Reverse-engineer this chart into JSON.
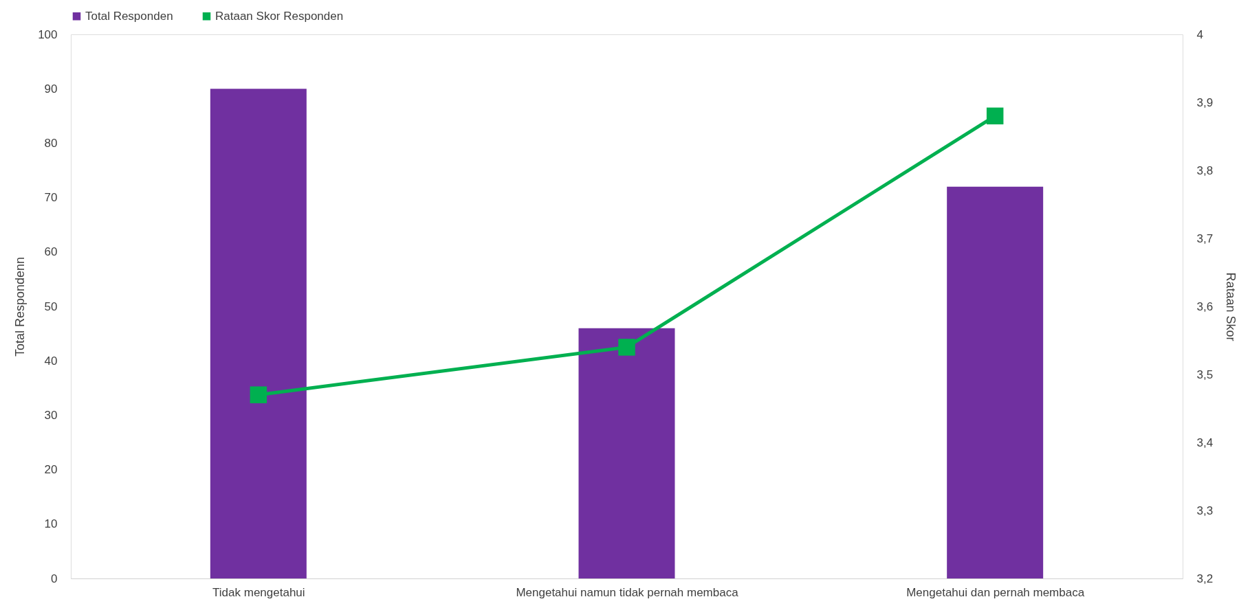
{
  "chart_data": {
    "type": "bar",
    "categories": [
      "Tidak mengetahui",
      "Mengetahui namun tidak pernah membaca",
      "Mengetahui dan pernah membaca"
    ],
    "series": [
      {
        "name": "Total Responden",
        "color": "#7030a0",
        "values": [
          90,
          46,
          72
        ]
      },
      {
        "name": "Rataan Skor Responden",
        "type": "line",
        "axis": "y2",
        "color": "#00b050",
        "marker": "square",
        "values": [
          3.47,
          3.54,
          3.88
        ]
      }
    ],
    "ylabel": "Total Respondenn",
    "y2label": "Rataan Skor",
    "ylim": [
      0,
      100
    ],
    "yticks": [
      0,
      10,
      20,
      30,
      40,
      50,
      60,
      70,
      80,
      90,
      100
    ],
    "y2lim": [
      3.2,
      4
    ],
    "y2ticks": [
      {
        "value": 3.2,
        "label": "3,2"
      },
      {
        "value": 3.3,
        "label": "3,3"
      },
      {
        "value": 3.4,
        "label": "3,4"
      },
      {
        "value": 3.5,
        "label": "3,5"
      },
      {
        "value": 3.6,
        "label": "3,6"
      },
      {
        "value": 3.7,
        "label": "3,7"
      },
      {
        "value": 3.8,
        "label": "3,8"
      },
      {
        "value": 3.9,
        "label": "3,9"
      },
      {
        "value": 4,
        "label": "4"
      }
    ],
    "legend": "top",
    "grid": false
  }
}
